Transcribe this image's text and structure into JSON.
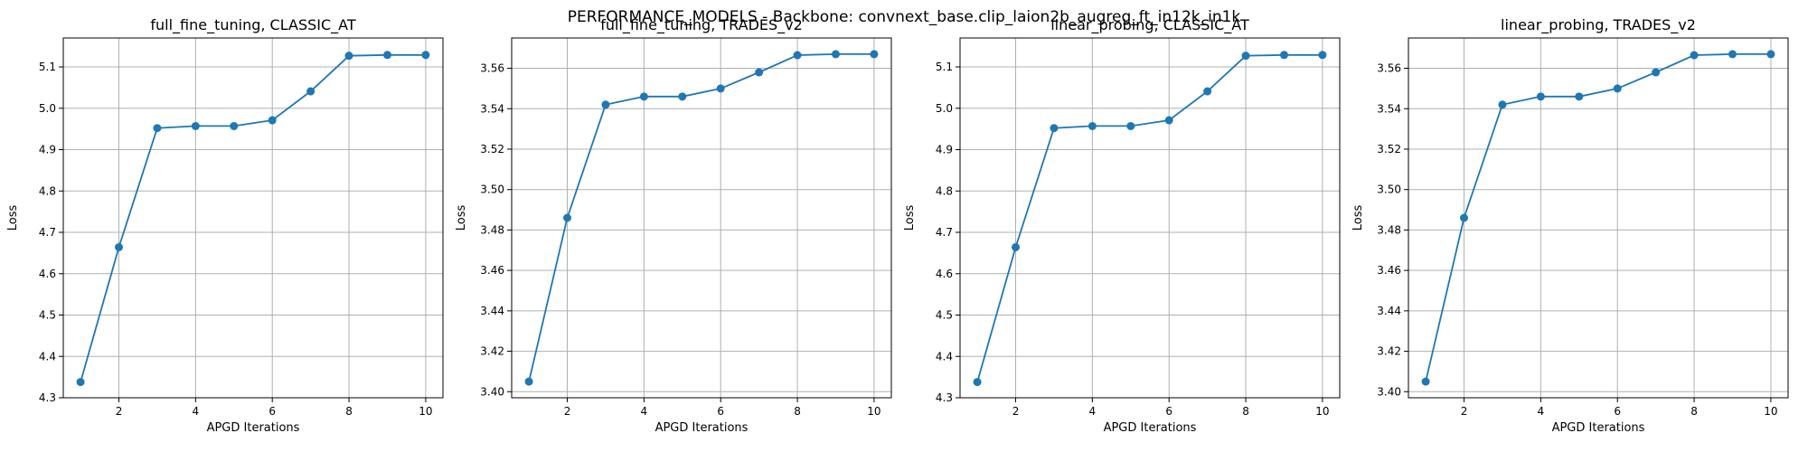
{
  "figure": {
    "suptitle": "PERFORMANCE_MODELS - Backbone: convnext_base.clip_laion2b_augreg_ft_in12k_in1k"
  },
  "colors": {
    "series": "#1f77b4"
  },
  "chart_data": [
    {
      "type": "line",
      "title": "full_fine_tuning, CLASSIC_AT",
      "xlabel": "APGD Iterations",
      "ylabel": "Loss",
      "x": [
        1,
        2,
        3,
        4,
        5,
        6,
        7,
        8,
        9,
        10
      ],
      "y": [
        4.338,
        4.664,
        4.952,
        4.957,
        4.957,
        4.971,
        5.041,
        5.127,
        5.129,
        5.129
      ],
      "xlim": [
        0.55,
        10.45
      ],
      "ylim": [
        4.3,
        5.17
      ],
      "xticks": [
        2,
        4,
        6,
        8,
        10
      ],
      "yticks": [
        "4.3",
        "4.4",
        "4.5",
        "4.6",
        "4.7",
        "4.8",
        "4.9",
        "5.0",
        "5.1"
      ],
      "grid": true
    },
    {
      "type": "line",
      "title": "full_fine_tuning, TRADES_v2",
      "xlabel": "APGD Iterations",
      "ylabel": "Loss",
      "x": [
        1,
        2,
        3,
        4,
        5,
        6,
        7,
        8,
        9,
        10
      ],
      "y": [
        3.405,
        3.486,
        3.542,
        3.546,
        3.546,
        3.55,
        3.558,
        3.5665,
        3.567,
        3.567
      ],
      "xlim": [
        0.55,
        10.45
      ],
      "ylim": [
        3.397,
        3.575
      ],
      "xticks": [
        2,
        4,
        6,
        8,
        10
      ],
      "yticks": [
        "3.40",
        "3.42",
        "3.44",
        "3.46",
        "3.48",
        "3.50",
        "3.52",
        "3.54",
        "3.56"
      ],
      "grid": true
    },
    {
      "type": "line",
      "title": "linear_probing, CLASSIC_AT",
      "xlabel": "APGD Iterations",
      "ylabel": "Loss",
      "x": [
        1,
        2,
        3,
        4,
        5,
        6,
        7,
        8,
        9,
        10
      ],
      "y": [
        4.338,
        4.664,
        4.952,
        4.957,
        4.957,
        4.971,
        5.041,
        5.127,
        5.129,
        5.129
      ],
      "xlim": [
        0.55,
        10.45
      ],
      "ylim": [
        4.3,
        5.17
      ],
      "xticks": [
        2,
        4,
        6,
        8,
        10
      ],
      "yticks": [
        "4.3",
        "4.4",
        "4.5",
        "4.6",
        "4.7",
        "4.8",
        "4.9",
        "5.0",
        "5.1"
      ],
      "grid": true
    },
    {
      "type": "line",
      "title": "linear_probing, TRADES_v2",
      "xlabel": "APGD Iterations",
      "ylabel": "Loss",
      "x": [
        1,
        2,
        3,
        4,
        5,
        6,
        7,
        8,
        9,
        10
      ],
      "y": [
        3.405,
        3.486,
        3.542,
        3.546,
        3.546,
        3.55,
        3.558,
        3.5665,
        3.567,
        3.567
      ],
      "xlim": [
        0.55,
        10.45
      ],
      "ylim": [
        3.397,
        3.575
      ],
      "xticks": [
        2,
        4,
        6,
        8,
        10
      ],
      "yticks": [
        "3.40",
        "3.42",
        "3.44",
        "3.46",
        "3.48",
        "3.50",
        "3.52",
        "3.54",
        "3.56"
      ],
      "grid": true
    }
  ]
}
